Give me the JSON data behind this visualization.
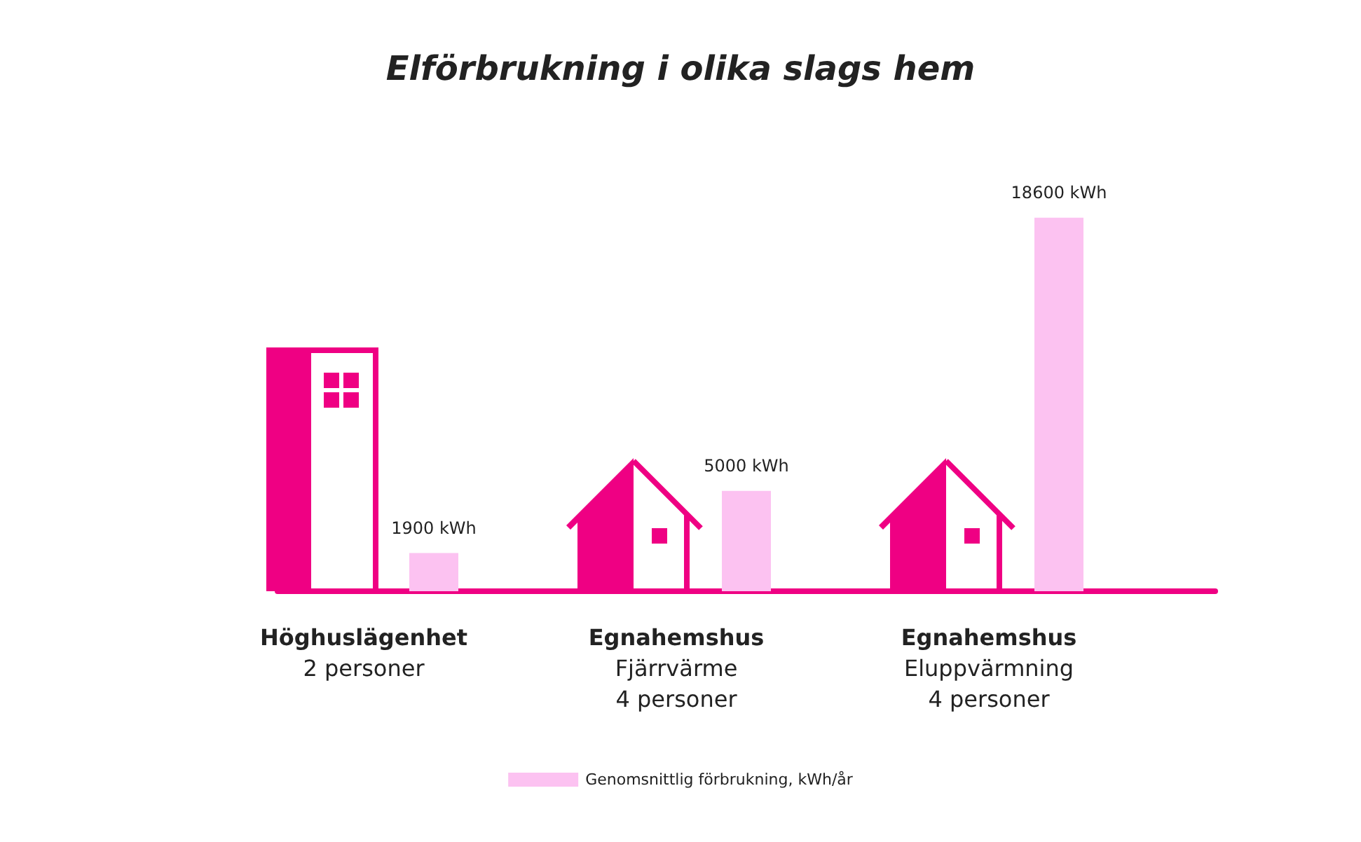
{
  "chart_data": {
    "type": "bar",
    "title": "Elförbrukning i olika slags hem",
    "categories": [
      "Höghuslägenhet\n2 personer",
      "Egnahemshus\nFjärrvärme\n4 personer",
      "Egnahemshus\nEluppvärmning\n4 personer"
    ],
    "series": [
      {
        "name": "Genomsnittlig förbrukning, kWh/år",
        "color": "#fcc2f1",
        "values": [
          1900,
          5000,
          18600
        ],
        "value_labels": [
          "1900 kWh",
          "5000 kWh",
          "18600 kWh"
        ]
      }
    ],
    "legend": "bottom",
    "grid": false
  }
}
